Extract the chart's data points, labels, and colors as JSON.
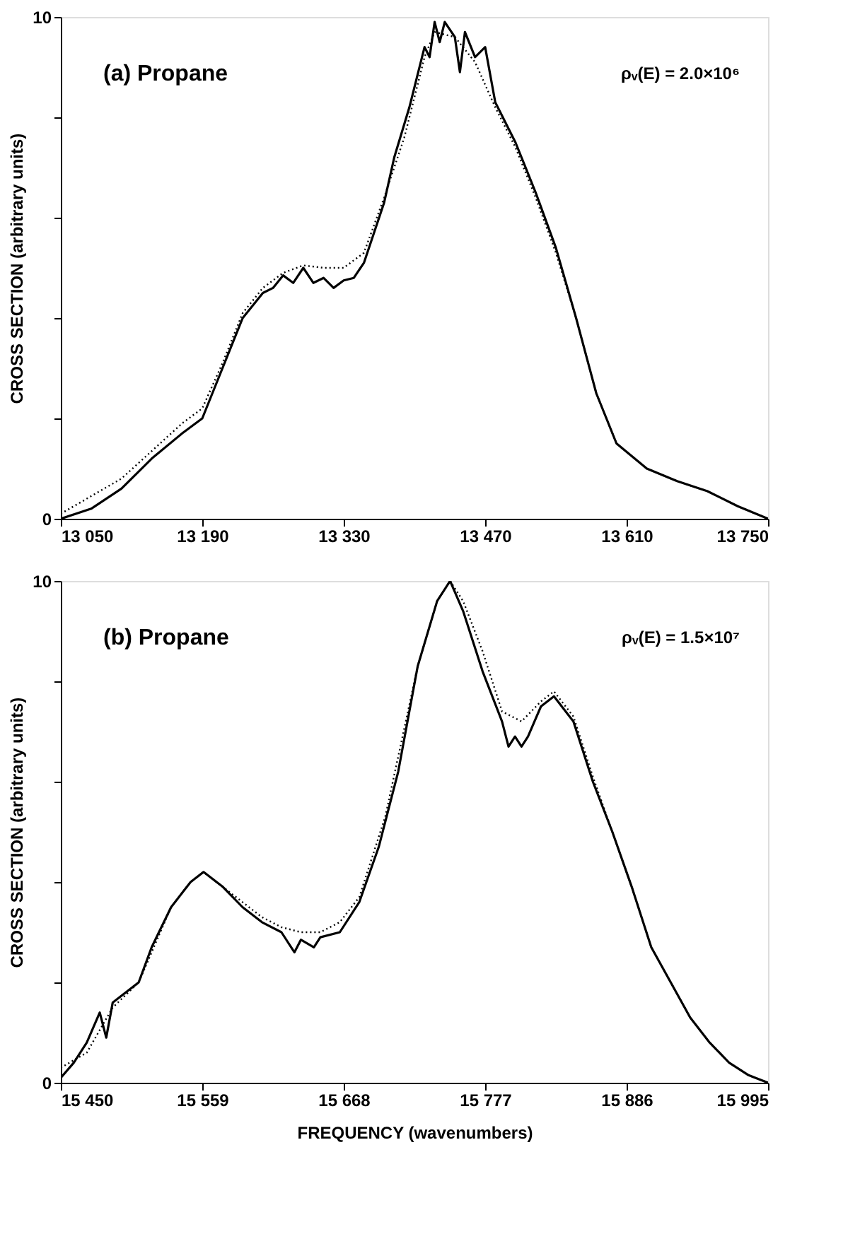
{
  "chart_data": [
    {
      "type": "line",
      "annotations": [
        "(a) Propane",
        "ρᵥ(E) = 2.0×10⁶"
      ],
      "ylabel": "CROSS SECTION (arbitrary units)",
      "xlim": [
        13050,
        13750
      ],
      "xticks": [
        {
          "value": 13050,
          "label": "13 050"
        },
        {
          "value": 13190,
          "label": "13 190"
        },
        {
          "value": 13330,
          "label": "13 330"
        },
        {
          "value": 13470,
          "label": "13 470"
        },
        {
          "value": 13610,
          "label": "13 610"
        },
        {
          "value": 13750,
          "label": "13 750"
        }
      ],
      "ylim": [
        0,
        10
      ],
      "yticks": [
        0,
        {
          "value": 2,
          "label": null
        },
        {
          "value": 4,
          "label": null
        },
        {
          "value": 6,
          "label": null
        },
        {
          "value": 8,
          "label": null
        },
        10
      ],
      "grid": false,
      "series": [
        {
          "color": "#000000",
          "line_style": "solid",
          "x": [
            13050,
            13080,
            13110,
            13140,
            13170,
            13190,
            13210,
            13230,
            13250,
            13260,
            13270,
            13280,
            13290,
            13300,
            13310,
            13320,
            13330,
            13340,
            13350,
            13370,
            13380,
            13395,
            13410,
            13415,
            13420,
            13425,
            13430,
            13440,
            13445,
            13450,
            13460,
            13470,
            13480,
            13500,
            13520,
            13540,
            13560,
            13580,
            13600,
            13630,
            13660,
            13690,
            13720,
            13750
          ],
          "values": [
            0.0,
            0.2,
            0.6,
            1.2,
            1.7,
            2.0,
            3.0,
            4.0,
            4.5,
            4.6,
            4.85,
            4.7,
            5.0,
            4.7,
            4.8,
            4.6,
            4.75,
            4.8,
            5.1,
            6.3,
            7.2,
            8.2,
            9.4,
            9.2,
            9.9,
            9.5,
            9.9,
            9.6,
            8.9,
            9.7,
            9.2,
            9.4,
            8.3,
            7.5,
            6.5,
            5.4,
            4.0,
            2.5,
            1.5,
            1.0,
            0.75,
            0.55,
            0.25,
            0.0
          ]
        },
        {
          "color": "#000000",
          "line_style": "dotted",
          "x": [
            13050,
            13110,
            13170,
            13190,
            13210,
            13230,
            13250,
            13270,
            13290,
            13310,
            13330,
            13350,
            13370,
            13390,
            13410,
            13420,
            13440,
            13460,
            13480,
            13500,
            13520,
            13540,
            13560,
            13580,
            13600,
            13630,
            13660,
            13690,
            13720,
            13750
          ],
          "values": [
            0.1,
            0.8,
            1.9,
            2.2,
            3.1,
            4.1,
            4.6,
            4.9,
            5.05,
            5.0,
            5.0,
            5.3,
            6.4,
            7.6,
            9.2,
            9.7,
            9.6,
            9.1,
            8.2,
            7.4,
            6.4,
            5.3,
            4.0,
            2.5,
            1.5,
            1.0,
            0.75,
            0.55,
            0.25,
            0.0
          ]
        }
      ]
    },
    {
      "type": "line",
      "annotations": [
        "(b) Propane",
        "ρᵥ(E) = 1.5×10⁷"
      ],
      "ylabel": "CROSS SECTION (arbitrary units)",
      "xlabel": "FREQUENCY (wavenumbers)",
      "xlim": [
        15450,
        15995
      ],
      "xticks": [
        {
          "value": 15450,
          "label": "15 450"
        },
        {
          "value": 15559,
          "label": "15 559"
        },
        {
          "value": 15668,
          "label": "15 668"
        },
        {
          "value": 15777,
          "label": "15 777"
        },
        {
          "value": 15886,
          "label": "15 886"
        },
        {
          "value": 15995,
          "label": "15 995"
        }
      ],
      "ylim": [
        0,
        10
      ],
      "yticks": [
        0,
        {
          "value": 2,
          "label": null
        },
        {
          "value": 4,
          "label": null
        },
        {
          "value": 6,
          "label": null
        },
        {
          "value": 8,
          "label": null
        },
        10
      ],
      "grid": false,
      "series": [
        {
          "color": "#000000",
          "line_style": "solid",
          "x": [
            15450,
            15460,
            15470,
            15480,
            15485,
            15490,
            15510,
            15520,
            15535,
            15550,
            15560,
            15575,
            15590,
            15605,
            15620,
            15630,
            15635,
            15645,
            15650,
            15665,
            15680,
            15695,
            15710,
            15725,
            15740,
            15750,
            15760,
            15775,
            15790,
            15795,
            15800,
            15805,
            15810,
            15820,
            15830,
            15845,
            15860,
            15875,
            15890,
            15905,
            15920,
            15935,
            15950,
            15965,
            15980,
            15995
          ],
          "values": [
            0.1,
            0.4,
            0.8,
            1.4,
            0.9,
            1.6,
            2.0,
            2.7,
            3.5,
            4.0,
            4.2,
            3.9,
            3.5,
            3.2,
            3.0,
            2.6,
            2.85,
            2.7,
            2.9,
            3.0,
            3.6,
            4.7,
            6.2,
            8.3,
            9.6,
            10.0,
            9.4,
            8.2,
            7.2,
            6.7,
            6.9,
            6.7,
            6.9,
            7.5,
            7.7,
            7.2,
            6.0,
            5.0,
            3.9,
            2.7,
            2.0,
            1.3,
            0.8,
            0.4,
            0.15,
            0.0
          ]
        },
        {
          "color": "#000000",
          "line_style": "dotted",
          "x": [
            15450,
            15470,
            15490,
            15510,
            15535,
            15550,
            15560,
            15575,
            15590,
            15605,
            15620,
            15635,
            15650,
            15665,
            15680,
            15700,
            15725,
            15740,
            15750,
            15760,
            15775,
            15790,
            15805,
            15820,
            15830,
            15845,
            15860,
            15875,
            15890,
            15905,
            15920,
            15935,
            15950,
            15965,
            15980,
            15995
          ],
          "values": [
            0.3,
            0.6,
            1.5,
            2.0,
            3.5,
            4.0,
            4.2,
            3.9,
            3.6,
            3.3,
            3.1,
            3.0,
            3.0,
            3.2,
            3.7,
            5.3,
            8.3,
            9.6,
            10.0,
            9.6,
            8.6,
            7.4,
            7.2,
            7.6,
            7.8,
            7.3,
            6.1,
            5.0,
            3.9,
            2.7,
            2.0,
            1.3,
            0.8,
            0.4,
            0.15,
            0.0
          ]
        }
      ]
    }
  ]
}
